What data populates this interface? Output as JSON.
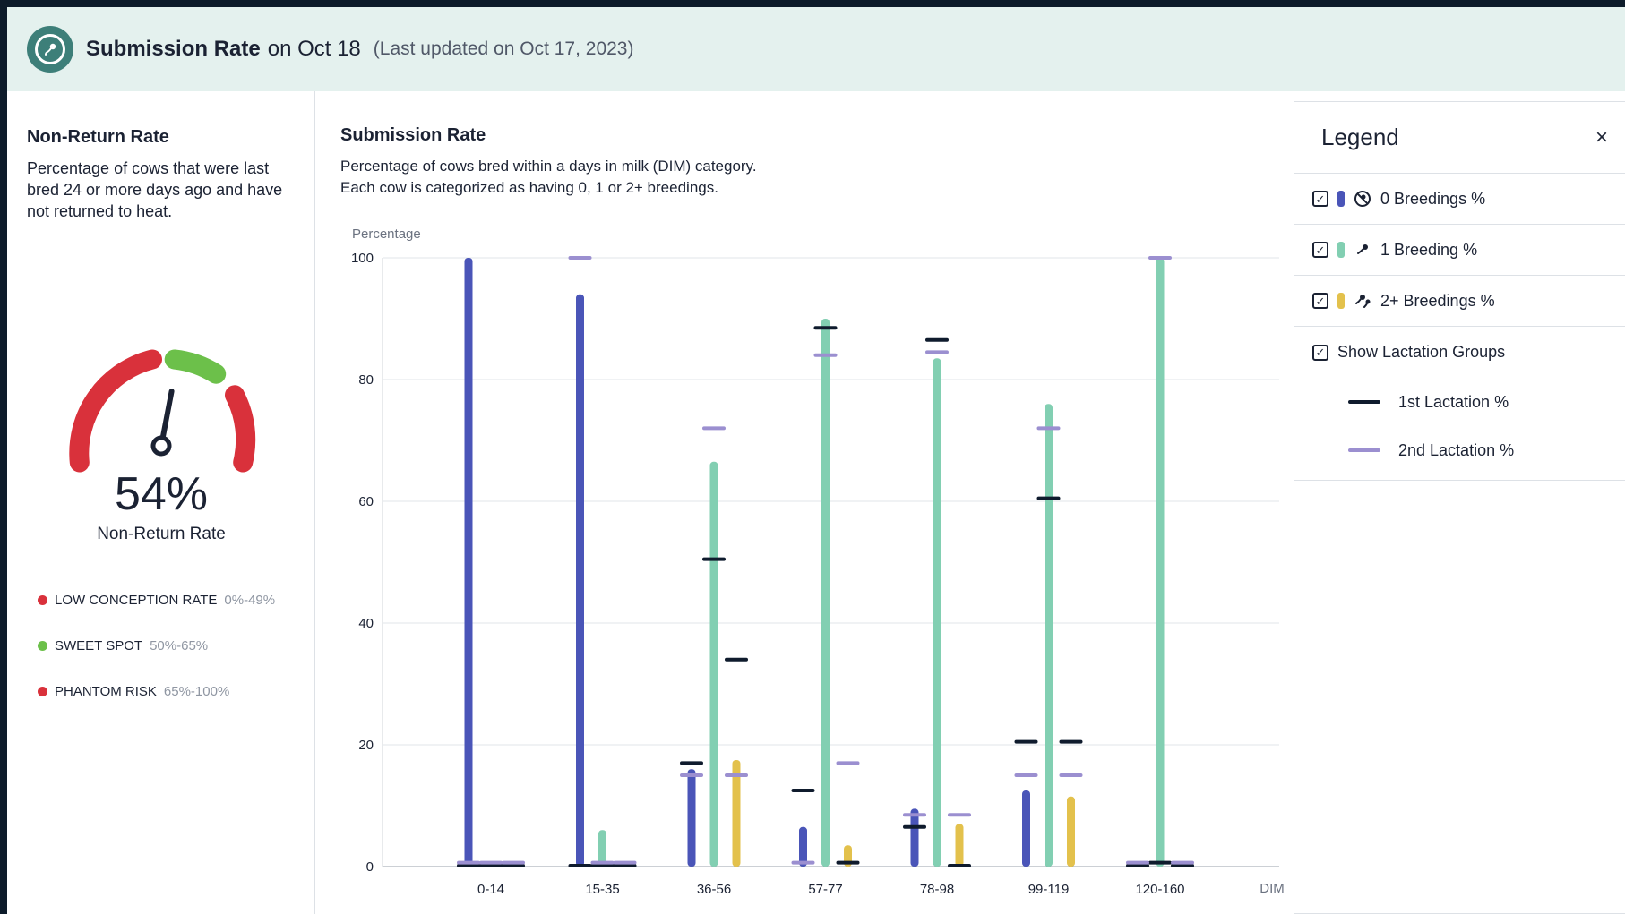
{
  "header": {
    "title": "Submission Rate",
    "date": "on Oct 18",
    "updated": "(Last updated on Oct 17, 2023)"
  },
  "left_panel": {
    "title": "Non-Return Rate",
    "description": "Percentage of cows that were last bred 24 or more days ago and have not returned to heat.",
    "gauge": {
      "value": 54,
      "value_text": "54%",
      "label": "Non-Return Rate",
      "colors": {
        "low": "#d9313b",
        "sweet": "#6cc04a",
        "needle": "#1b2233"
      }
    },
    "ranges": [
      {
        "name": "LOW CONCEPTION RATE",
        "range": "0%-49%",
        "color": "#d9313b"
      },
      {
        "name": "SWEET SPOT",
        "range": "50%-65%",
        "color": "#6cc04a"
      },
      {
        "name": "PHANTOM RISK",
        "range": "65%-100%",
        "color": "#d9313b"
      }
    ]
  },
  "chart_panel": {
    "title": "Submission Rate",
    "description_line1": "Percentage of cows bred within a days in milk (DIM) category.",
    "description_line2": "Each cow is categorized as having 0, 1 or 2+ breedings."
  },
  "chart_data": {
    "type": "bar",
    "ylabel": "Percentage",
    "xlabel": "DIM",
    "ylim": [
      0,
      100
    ],
    "yticks": [
      0,
      20,
      40,
      60,
      80,
      100
    ],
    "categories": [
      "0-14",
      "15-35",
      "36-56",
      "57-77",
      "78-98",
      "99-119",
      "120-160"
    ],
    "grid": true,
    "series": [
      {
        "name": "0 Breedings %",
        "color": "#4a55b8",
        "values": [
          100,
          94,
          16,
          6.5,
          9.5,
          12.5,
          0
        ]
      },
      {
        "name": "1 Breeding %",
        "color": "#82cfb2",
        "values": [
          0,
          6,
          66.5,
          90,
          83.5,
          76,
          100
        ]
      },
      {
        "name": "2+ Breedings %",
        "color": "#e3c14c",
        "values": [
          0,
          0,
          17.5,
          3.5,
          7,
          11.5,
          0
        ]
      }
    ],
    "lactation_markers": [
      {
        "name": "1st Lactation %",
        "color": "#0f1b2d",
        "values": [
          [
            0,
            0,
            0
          ],
          [
            0,
            0,
            0
          ],
          [
            17,
            50.5,
            34
          ],
          [
            12.5,
            88.5,
            0.5
          ],
          [
            6.5,
            86.5,
            0
          ],
          [
            20.5,
            60.5,
            20.5
          ],
          [
            0,
            0.5,
            0
          ]
        ]
      },
      {
        "name": "2nd Lactation %",
        "color": "#9b8fd0",
        "values": [
          [
            0.5,
            0.5,
            0.5
          ],
          [
            100,
            0.5,
            0.5
          ],
          [
            15,
            72,
            15
          ],
          [
            0.5,
            84,
            17
          ],
          [
            8.5,
            84.5,
            8.5
          ],
          [
            15,
            72,
            15
          ],
          [
            0.5,
            100,
            0.5
          ]
        ]
      }
    ]
  },
  "legend": {
    "title": "Legend",
    "close": "×",
    "items": [
      {
        "label": "0 Breedings %",
        "color": "#4a55b8",
        "icon": "no-breeding-icon"
      },
      {
        "label": "1 Breeding %",
        "color": "#82cfb2",
        "icon": "single-sperm-icon"
      },
      {
        "label": "2+ Breedings %",
        "color": "#e3c14c",
        "icon": "double-sperm-icon"
      }
    ],
    "lactation_toggle": "Show Lactation Groups",
    "lactation_items": [
      {
        "label": "1st Lactation %",
        "color": "#0f1b2d"
      },
      {
        "label": "2nd Lactation %",
        "color": "#9b8fd0"
      }
    ]
  }
}
